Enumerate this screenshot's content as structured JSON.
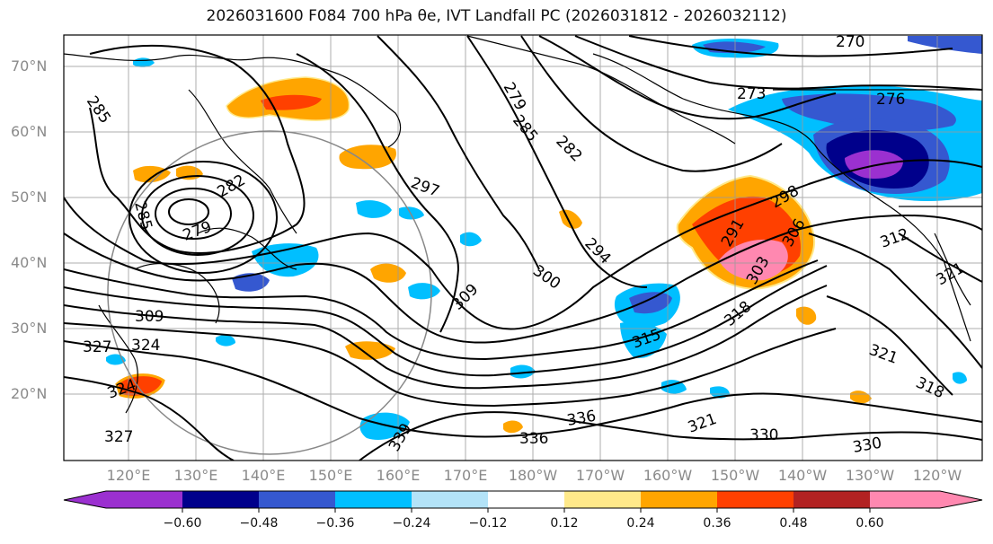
{
  "title": "2026031600 F084 700 hPa θe, IVT Landfall PC (2026031812 - 2026032112)",
  "lat_labels": [
    "70°N",
    "60°N",
    "50°N",
    "40°N",
    "30°N",
    "20°N"
  ],
  "lon_labels": [
    "120°E",
    "130°E",
    "140°E",
    "150°E",
    "160°E",
    "170°E",
    "180°W",
    "170°W",
    "160°W",
    "150°W",
    "140°W",
    "130°W",
    "120°W"
  ],
  "colorbar": {
    "ticks": [
      "−0.60",
      "−0.48",
      "−0.36",
      "−0.24",
      "−0.12",
      "0.12",
      "0.24",
      "0.36",
      "0.48",
      "0.60"
    ],
    "colors": [
      "#9b30d0",
      "#00008b",
      "#3558d0",
      "#00bfff",
      "#b3e3f8",
      "#ffffff",
      "#ffe98a",
      "#ffa500",
      "#ff4000",
      "#b22222",
      "#ff88b0"
    ]
  },
  "contour_labels": [
    "270",
    "273",
    "276",
    "279",
    "282",
    "285",
    "285",
    "282",
    "279",
    "285",
    "297",
    "291",
    "294",
    "298",
    "300",
    "303",
    "306",
    "309",
    "309",
    "312",
    "315",
    "318",
    "318",
    "321",
    "321",
    "321",
    "324",
    "324",
    "327",
    "327",
    "330",
    "330",
    "336",
    "336",
    "339"
  ]
}
